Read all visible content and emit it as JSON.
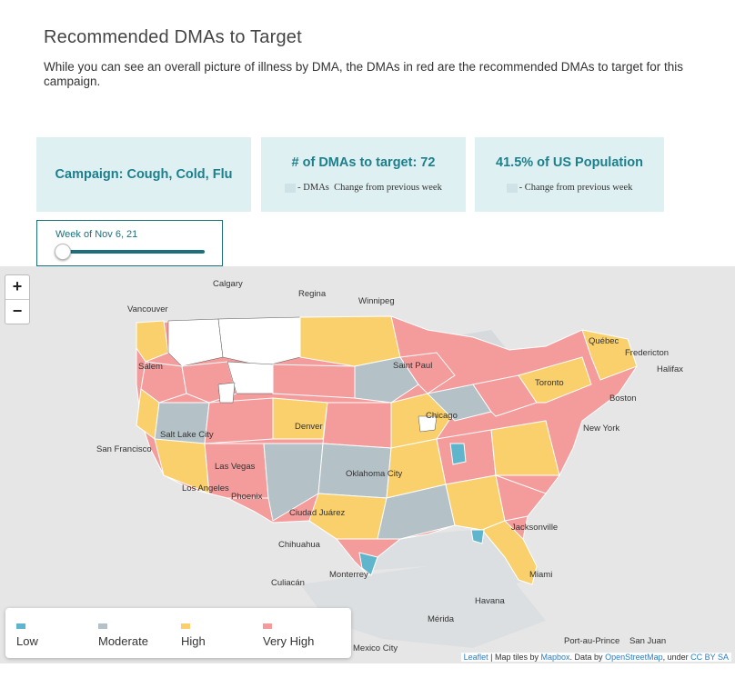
{
  "header": {
    "title": "Recommended DMAs to Target",
    "subtitle": "While you can see an overall picture of illness by DMA, the DMAs in red are the recommended DMAs to target for this campaign."
  },
  "cards": {
    "campaign": "Campaign:  Cough, Cold, Flu",
    "dma_kpi": "# of DMAs to target:  72",
    "dma_change_value": "- DMAs",
    "dma_change_label": "Change from previous week",
    "pop_kpi": "41.5%  of US Population",
    "pop_change_value": "-",
    "pop_change_label": "Change from previous week"
  },
  "week_slider": {
    "label": "Week of Nov 6, 21",
    "position": 0
  },
  "map": {
    "zoom_in": "+",
    "zoom_out": "−",
    "cities": [
      "Calgary",
      "Regina",
      "Winnipeg",
      "Vancouver",
      "Québec",
      "Fredericton",
      "Halifax",
      "Salem",
      "Toronto",
      "Boston",
      "New York",
      "San Francisco",
      "Salt Lake City",
      "Denver",
      "Saint Paul",
      "Chicago",
      "Las Vegas",
      "Los Angeles",
      "Phoenix",
      "Oklahoma City",
      "Ciudad Juárez",
      "Chihuahua",
      "Jacksonville",
      "Miami",
      "Monterrey",
      "Culiacán",
      "Havana",
      "Mérida",
      "Mexico City",
      "Port-au-Prince",
      "San Juan"
    ],
    "attribution": {
      "leaflet": "Leaflet",
      "text1": " | Map tiles by ",
      "mapbox": "Mapbox",
      "text2": ". Data by ",
      "osm": "OpenStreetMap",
      "text3": ", under ",
      "license": "CC BY SA"
    }
  },
  "legend": {
    "items": [
      {
        "label": "Low",
        "color": "#5fb6cc"
      },
      {
        "label": "Moderate",
        "color": "#b4c2c8"
      },
      {
        "label": "High",
        "color": "#f9d06b"
      },
      {
        "label": "Very High",
        "color": "#f49b9b"
      }
    ]
  },
  "colors": {
    "accent": "#1c7f8c",
    "card_bg": "#dff0f2",
    "low": "#5fb6cc",
    "moderate": "#b4c2c8",
    "high": "#f9d06b",
    "very_high": "#f49b9b"
  }
}
